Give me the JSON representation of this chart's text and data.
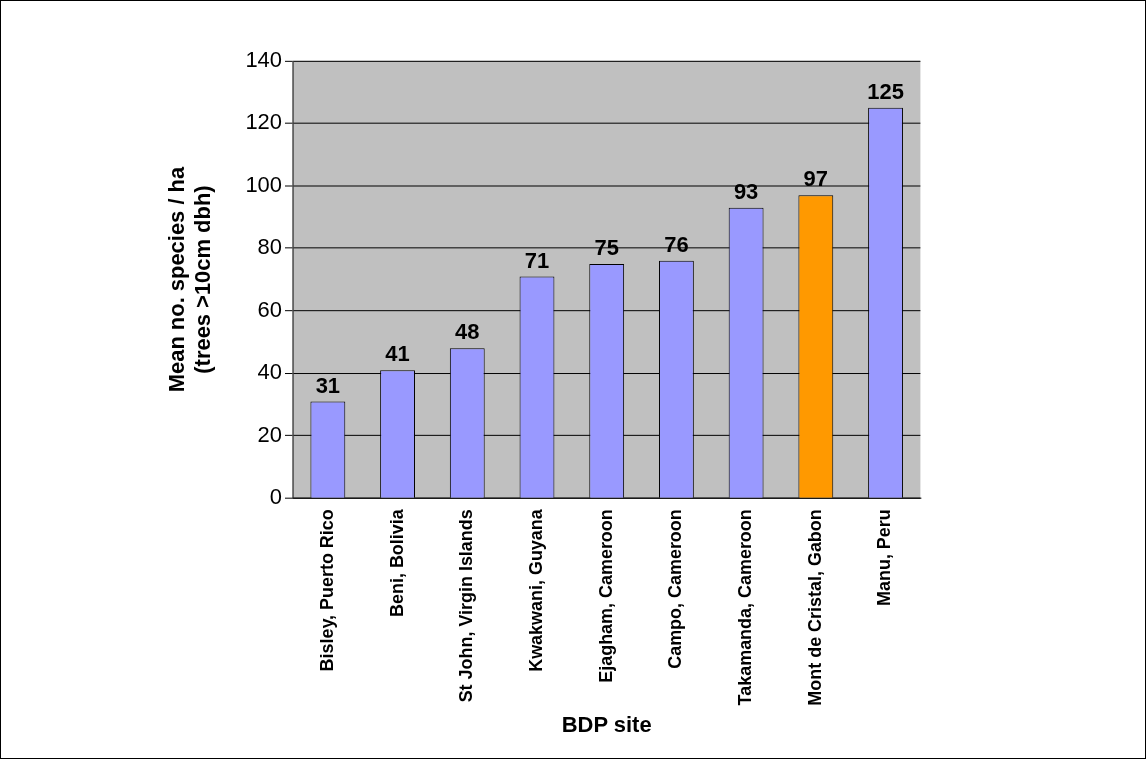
{
  "chart_data": {
    "type": "bar",
    "xlabel": "BDP site",
    "ylabel": "Mean no. species / ha\n(trees >10cm dbh)",
    "categories": [
      "Bisley, Puerto Rico",
      "Beni, Bolivia",
      "St John, Virgin Islands",
      "Kwakwani, Guyana",
      "Ejagham, Cameroon",
      "Campo, Cameroon",
      "Takamanda, Cameroon",
      "Mont de Cristal, Gabon",
      "Manu, Peru"
    ],
    "values": [
      31,
      41,
      48,
      71,
      75,
      76,
      93,
      97,
      125
    ],
    "colors": [
      "#9999ff",
      "#9999ff",
      "#9999ff",
      "#9999ff",
      "#9999ff",
      "#9999ff",
      "#9999ff",
      "#ff9900",
      "#9999ff"
    ],
    "ylim": [
      0,
      140
    ],
    "yticks": [
      0,
      20,
      40,
      60,
      80,
      100,
      120,
      140
    ],
    "grid": "y",
    "data_labels": true,
    "legend": false
  }
}
